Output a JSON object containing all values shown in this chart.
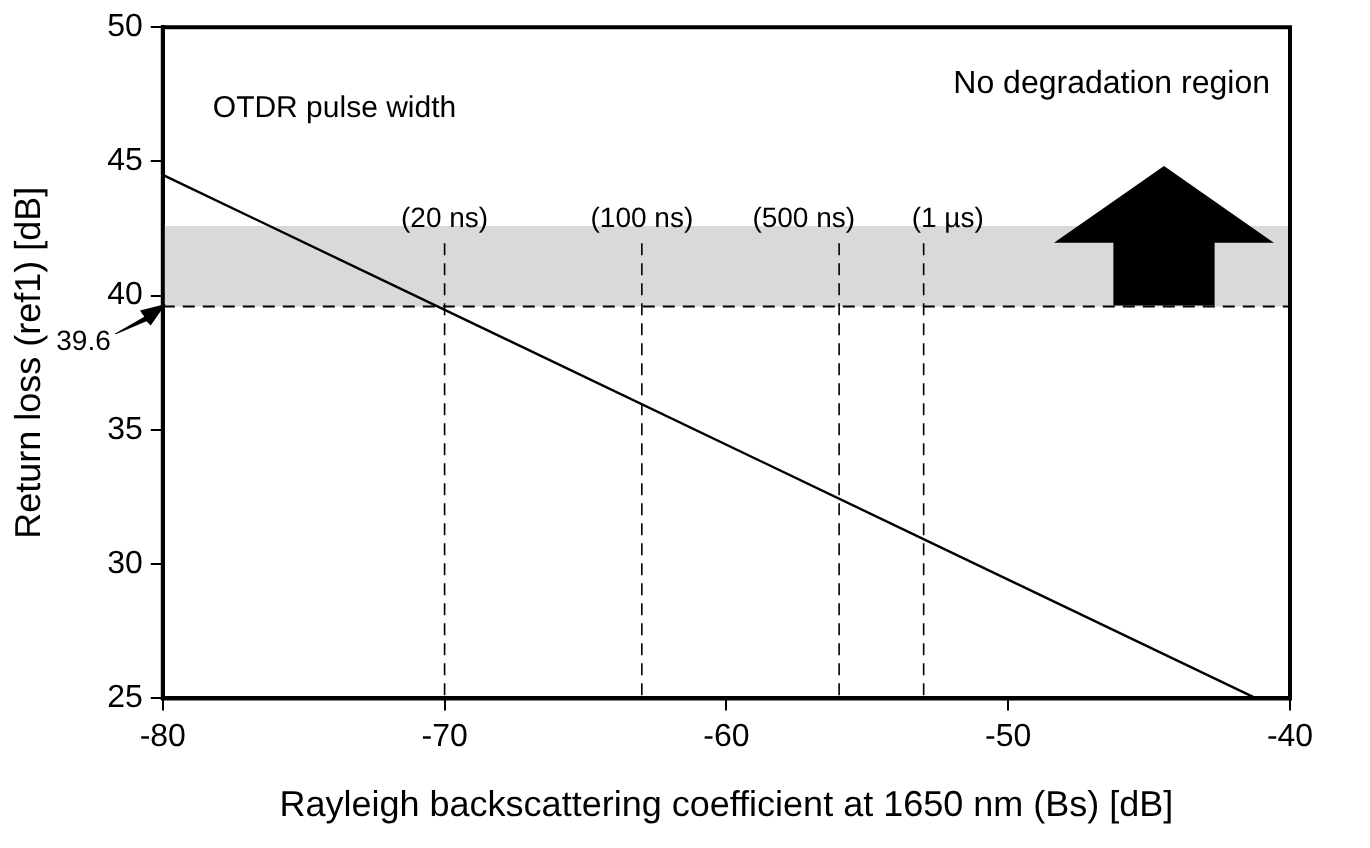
{
  "chart_data": {
    "type": "line",
    "xlabel": "Rayleigh backscattering coefficient at 1650 nm (Bs) [dB]",
    "ylabel": "Return loss (ref1) [dB]",
    "x": [
      -80,
      -41.2
    ],
    "series": [
      {
        "color": "#000000",
        "values": [
          44.5,
          25
        ]
      }
    ],
    "xlim": [
      -80,
      -40
    ],
    "xticks": [
      -80,
      -70,
      -60,
      -50,
      -40
    ],
    "ylim": [
      25,
      50
    ],
    "yticks": [
      25,
      30,
      35,
      40,
      45,
      50
    ],
    "ref_lines": [
      {
        "axis": "y",
        "value": 39.6,
        "label": "39.6",
        "line_style": "dashed",
        "color": "#000000"
      },
      {
        "axis": "x",
        "value": -70,
        "label": "(20 ns)",
        "line_style": "dashed",
        "color": "#000000"
      },
      {
        "axis": "x",
        "value": -63,
        "label": "(100 ns)",
        "line_style": "dashed",
        "color": "#000000"
      },
      {
        "axis": "x",
        "value": -56,
        "label": "(500 ns)",
        "line_style": "dashed",
        "color": "#000000"
      },
      {
        "axis": "x",
        "value": -53,
        "label": "(1 µs)",
        "line_style": "dashed",
        "color": "#000000"
      }
    ],
    "bands": [
      {
        "axis": "y",
        "from": 39.6,
        "to": 42.6,
        "color": "#d9d9d9"
      }
    ],
    "annotations": [
      "OTDR pulse width",
      "No degradation region"
    ],
    "grid": false,
    "legend": false,
    "marker": "none",
    "line_style": "solid"
  }
}
